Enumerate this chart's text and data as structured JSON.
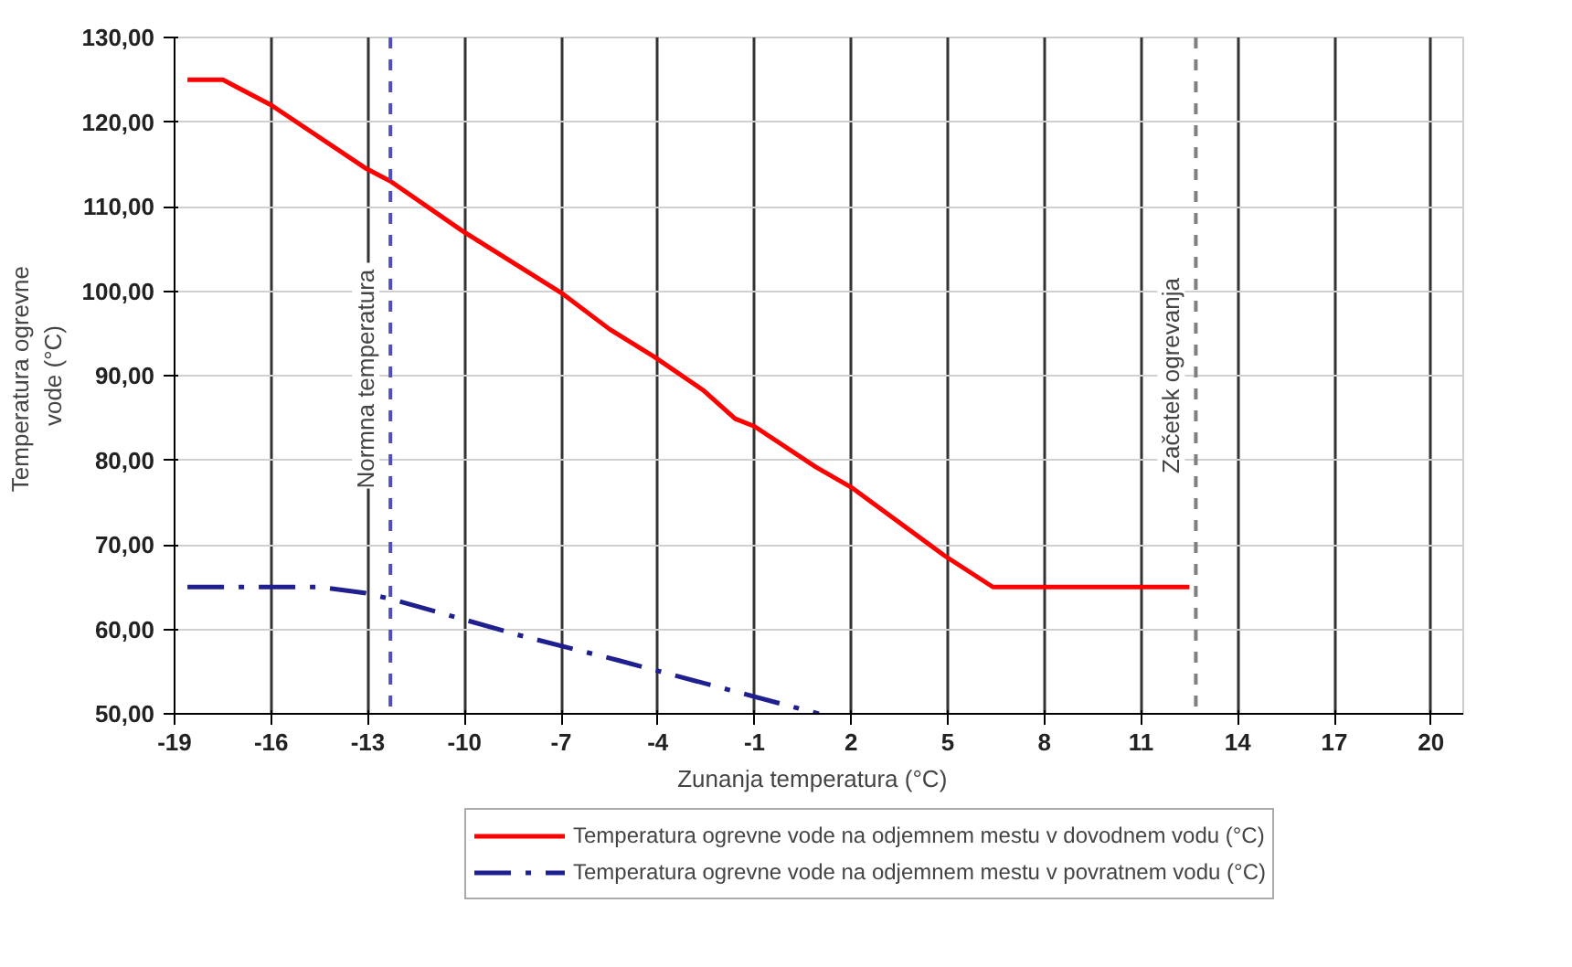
{
  "chart_data": {
    "type": "line",
    "xlabel": "Zunanja  temperatura  (°C)",
    "ylabel": "Temperatura  ogrevne\nvode (°C)",
    "xlim": [
      -19,
      21
    ],
    "xticks": [
      -19,
      -16,
      -13,
      -10,
      -7,
      -4,
      -1,
      2,
      5,
      8,
      11,
      14,
      17,
      20
    ],
    "ylim": [
      50,
      130
    ],
    "yticks": [
      {
        "value": 50,
        "label": "50,00"
      },
      {
        "value": 60,
        "label": "60,00"
      },
      {
        "value": 70,
        "label": "70,00"
      },
      {
        "value": 80,
        "label": "80,00"
      },
      {
        "value": 90,
        "label": "90,00"
      },
      {
        "value": 100,
        "label": "100,00"
      },
      {
        "value": 110,
        "label": "110,00"
      },
      {
        "value": 120,
        "label": "120,00"
      },
      {
        "value": 130,
        "label": "130,00"
      }
    ],
    "grid": true,
    "legend": "bottom",
    "marker": "none",
    "series": [
      {
        "name": "Temperatura ogrevne vode na odjemnem mestu v dovodnem vodu (°C)",
        "color": "#ff0000",
        "line_style": "solid",
        "x": [
          -18.6,
          -17.5,
          -16,
          -13.1,
          -12.3,
          -10.1,
          -7.0,
          -5.5,
          -4.1,
          -2.6,
          -1.6,
          -1.0,
          0.9,
          2.0,
          4.9,
          6.4,
          12.5
        ],
        "values": [
          125,
          125,
          122,
          114.6,
          113,
          107.2,
          99.8,
          95.5,
          92.2,
          88.3,
          84.9,
          84,
          79.2,
          76.8,
          68.7,
          65,
          65
        ]
      },
      {
        "name": "Temperatura ogrevne vode na odjemnem mestu v povratnem vodu (°C)",
        "color": "#1f1f8f",
        "line_style": "dashdot",
        "x": [
          -18.6,
          -14.5,
          -13.1,
          -12.2,
          -8.3,
          -5.2,
          1.0
        ],
        "values": [
          65,
          65,
          64.3,
          63.5,
          59.3,
          56.3,
          50
        ]
      }
    ],
    "ref_lines": [
      {
        "axis": "x",
        "value": -12.3,
        "label": "Normna  temperatura",
        "color": "#4f4fbf",
        "line_style": "dashed"
      },
      {
        "axis": "x",
        "value": 12.7,
        "label": "Začetek ogrevanja",
        "color": "#808080",
        "line_style": "dashed"
      }
    ]
  }
}
